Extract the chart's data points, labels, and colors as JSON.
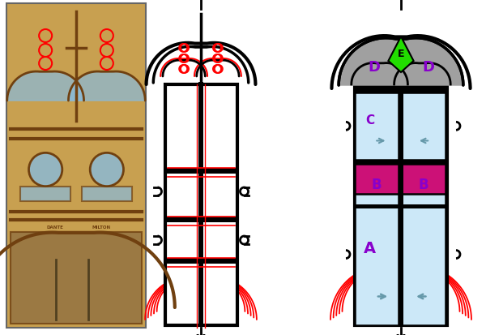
{
  "bg_color": "#ffffff",
  "fig_w": 6.0,
  "fig_h": 4.14,
  "red_color": "#ff0000",
  "black_color": "#000000",
  "gray_color": "#a0a0a0",
  "green_color": "#22dd00",
  "magenta_color": "#cc1177",
  "light_blue": "#cce8f8",
  "purple_color": "#8800cc",
  "arrow_color": "#6699aa",
  "white": "#ffffff",
  "photo_bg": "#c8a050",
  "photo_dark": "#704010",
  "photo_blue": "#88bbdd",
  "label_A": "A",
  "label_B": "B",
  "label_C": "C",
  "label_D": "D",
  "label_E": "E"
}
